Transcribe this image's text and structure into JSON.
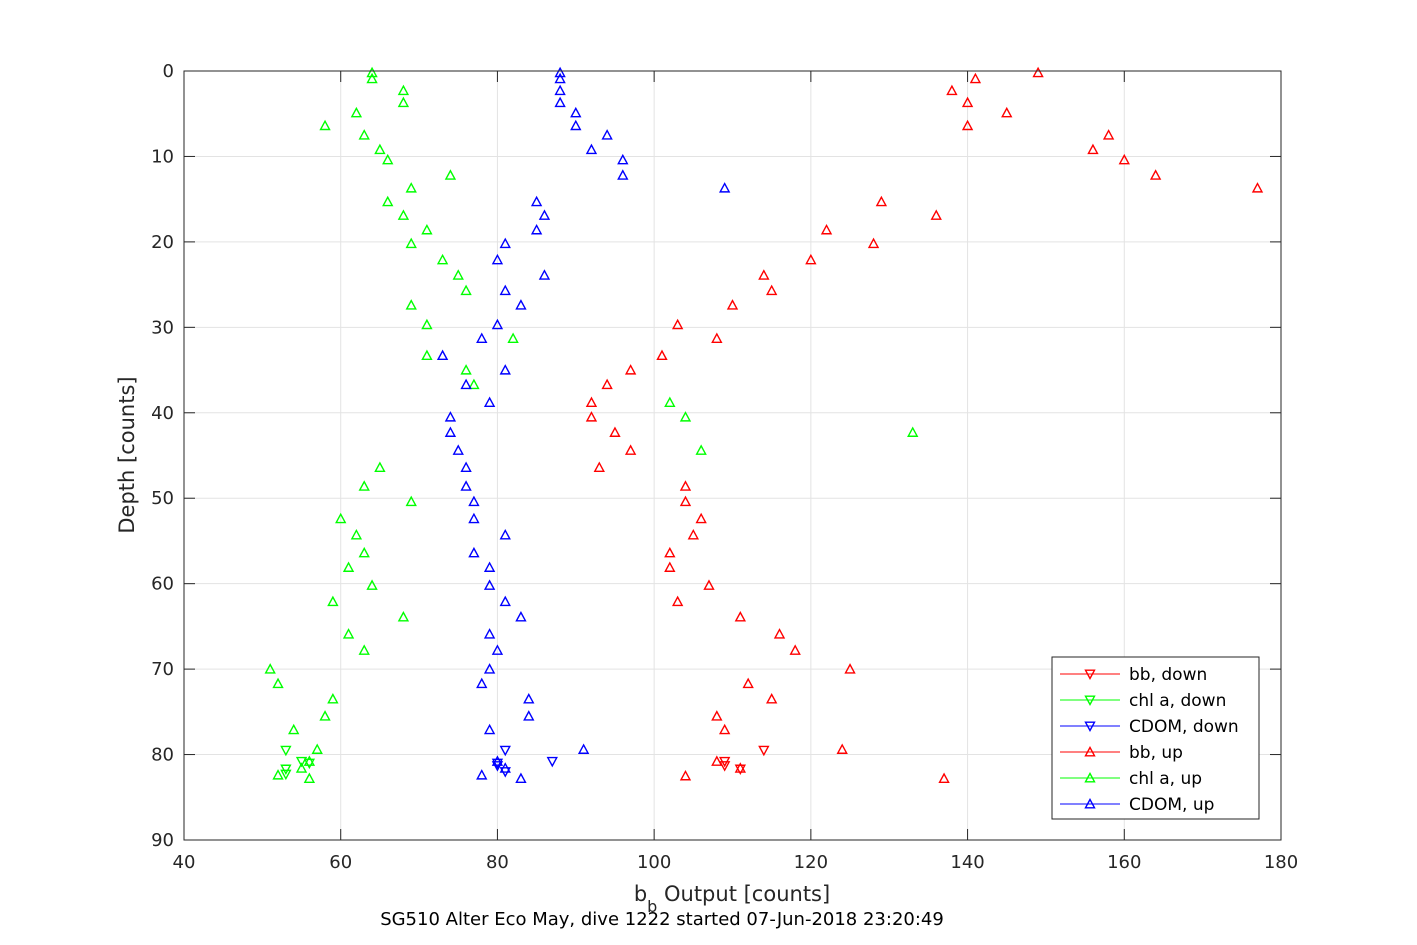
{
  "chart_data": {
    "type": "scatter",
    "title": "SG510 Alter Eco May, dive 1222 started 07-Jun-2018 23:20:49",
    "xlabel_main": "b",
    "xlabel_sub": "b",
    "xlabel_rest": " Output [counts]",
    "ylabel": "Depth [counts]",
    "xlim": [
      40,
      180
    ],
    "ylim": [
      0,
      90
    ],
    "y_reversed": true,
    "grid": true,
    "legend_position": "bottom-right",
    "xticks": [
      "40",
      "60",
      "80",
      "100",
      "120",
      "140",
      "160",
      "180"
    ],
    "yticks": [
      "0",
      "10",
      "20",
      "30",
      "40",
      "50",
      "60",
      "70",
      "80",
      "90"
    ],
    "colors": {
      "bb": "#ff0000",
      "chl": "#00ff00",
      "cdom": "#0000ff"
    },
    "series": [
      {
        "name": "bb, down",
        "color": "#ff0000",
        "marker": "triangle-down",
        "points": [
          [
            114,
            79.5
          ],
          [
            109,
            80.8
          ],
          [
            111,
            81.7
          ],
          [
            109,
            81.3
          ]
        ]
      },
      {
        "name": "chl a, down",
        "color": "#00ff00",
        "marker": "triangle-down",
        "points": [
          [
            53,
            79.5
          ],
          [
            55,
            80.8
          ],
          [
            53,
            81.7
          ],
          [
            53,
            82.3
          ],
          [
            56,
            81
          ]
        ]
      },
      {
        "name": "CDOM, down",
        "color": "#0000ff",
        "marker": "triangle-down",
        "points": [
          [
            81,
            79.5
          ],
          [
            87,
            80.8
          ],
          [
            80,
            81.3
          ],
          [
            81,
            82
          ],
          [
            80,
            81
          ]
        ]
      },
      {
        "name": "bb, up",
        "color": "#ff0000",
        "marker": "triangle-up",
        "points": [
          [
            149,
            0.2
          ],
          [
            141,
            0.9
          ],
          [
            138,
            2.3
          ],
          [
            140,
            3.7
          ],
          [
            145,
            4.9
          ],
          [
            140,
            6.4
          ],
          [
            158,
            7.5
          ],
          [
            156,
            9.2
          ],
          [
            160,
            10.4
          ],
          [
            164,
            12.2
          ],
          [
            177,
            13.7
          ],
          [
            129,
            15.3
          ],
          [
            136,
            16.9
          ],
          [
            122,
            18.6
          ],
          [
            128,
            20.2
          ],
          [
            120,
            22.1
          ],
          [
            114,
            23.9
          ],
          [
            115,
            25.7
          ],
          [
            110,
            27.4
          ],
          [
            103,
            29.7
          ],
          [
            108,
            31.3
          ],
          [
            101,
            33.3
          ],
          [
            97,
            35.0
          ],
          [
            94,
            36.7
          ],
          [
            92,
            38.8
          ],
          [
            92,
            40.5
          ],
          [
            95,
            42.3
          ],
          [
            97,
            44.4
          ],
          [
            93,
            46.4
          ],
          [
            104,
            48.6
          ],
          [
            104,
            50.4
          ],
          [
            106,
            52.4
          ],
          [
            105,
            54.3
          ],
          [
            102,
            56.4
          ],
          [
            102,
            58.1
          ],
          [
            107,
            60.2
          ],
          [
            103,
            62.1
          ],
          [
            111,
            63.9
          ],
          [
            116,
            65.9
          ],
          [
            118,
            67.8
          ],
          [
            125,
            70
          ],
          [
            112,
            71.7
          ],
          [
            115,
            73.5
          ],
          [
            108,
            75.5
          ],
          [
            109,
            77.1
          ],
          [
            124,
            79.4
          ],
          [
            108,
            80.8
          ],
          [
            111,
            81.6
          ],
          [
            104,
            82.5
          ],
          [
            137,
            82.8
          ]
        ]
      },
      {
        "name": "chl a, up",
        "color": "#00ff00",
        "marker": "triangle-up",
        "points": [
          [
            64,
            0.2
          ],
          [
            64,
            0.9
          ],
          [
            68,
            2.3
          ],
          [
            68,
            3.7
          ],
          [
            62,
            4.9
          ],
          [
            58,
            6.4
          ],
          [
            63,
            7.5
          ],
          [
            65,
            9.2
          ],
          [
            66,
            10.4
          ],
          [
            74,
            12.2
          ],
          [
            69,
            13.7
          ],
          [
            66,
            15.3
          ],
          [
            68,
            16.9
          ],
          [
            71,
            18.6
          ],
          [
            69,
            20.2
          ],
          [
            73,
            22.1
          ],
          [
            75,
            23.9
          ],
          [
            76,
            25.7
          ],
          [
            69,
            27.4
          ],
          [
            71,
            29.7
          ],
          [
            82,
            31.3
          ],
          [
            71,
            33.3
          ],
          [
            76,
            35.0
          ],
          [
            77,
            36.7
          ],
          [
            102,
            38.8
          ],
          [
            104,
            40.5
          ],
          [
            133,
            42.3
          ],
          [
            106,
            44.4
          ],
          [
            65,
            46.4
          ],
          [
            63,
            48.6
          ],
          [
            69,
            50.4
          ],
          [
            60,
            52.4
          ],
          [
            62,
            54.3
          ],
          [
            63,
            56.4
          ],
          [
            61,
            58.1
          ],
          [
            64,
            60.2
          ],
          [
            59,
            62.1
          ],
          [
            68,
            63.9
          ],
          [
            61,
            65.9
          ],
          [
            63,
            67.8
          ],
          [
            51,
            70
          ],
          [
            52,
            71.7
          ],
          [
            59,
            73.5
          ],
          [
            58,
            75.5
          ],
          [
            54,
            77.1
          ],
          [
            57,
            79.4
          ],
          [
            56,
            80.8
          ],
          [
            55,
            81.6
          ],
          [
            52,
            82.4
          ],
          [
            56,
            82.8
          ]
        ]
      },
      {
        "name": "CDOM, up",
        "color": "#0000ff",
        "marker": "triangle-up",
        "points": [
          [
            88,
            0.2
          ],
          [
            88,
            0.9
          ],
          [
            88,
            2.3
          ],
          [
            88,
            3.7
          ],
          [
            90,
            4.9
          ],
          [
            90,
            6.4
          ],
          [
            94,
            7.5
          ],
          [
            92,
            9.2
          ],
          [
            96,
            10.4
          ],
          [
            96,
            12.2
          ],
          [
            109,
            13.7
          ],
          [
            85,
            15.3
          ],
          [
            86,
            16.9
          ],
          [
            85,
            18.6
          ],
          [
            81,
            20.2
          ],
          [
            80,
            22.1
          ],
          [
            86,
            23.9
          ],
          [
            81,
            25.7
          ],
          [
            83,
            27.4
          ],
          [
            80,
            29.7
          ],
          [
            78,
            31.3
          ],
          [
            73,
            33.3
          ],
          [
            81,
            35.0
          ],
          [
            76,
            36.7
          ],
          [
            79,
            38.8
          ],
          [
            74,
            40.5
          ],
          [
            74,
            42.3
          ],
          [
            75,
            44.4
          ],
          [
            76,
            46.4
          ],
          [
            76,
            48.6
          ],
          [
            77,
            50.4
          ],
          [
            77,
            52.4
          ],
          [
            81,
            54.3
          ],
          [
            77,
            56.4
          ],
          [
            79,
            58.1
          ],
          [
            79,
            60.2
          ],
          [
            81,
            62.1
          ],
          [
            83,
            63.9
          ],
          [
            79,
            65.9
          ],
          [
            80,
            67.8
          ],
          [
            79,
            70
          ],
          [
            78,
            71.7
          ],
          [
            84,
            73.5
          ],
          [
            84,
            75.5
          ],
          [
            79,
            77.1
          ],
          [
            91,
            79.4
          ],
          [
            80,
            80.8
          ],
          [
            81,
            81.6
          ],
          [
            78,
            82.4
          ],
          [
            83,
            82.8
          ]
        ]
      }
    ]
  }
}
